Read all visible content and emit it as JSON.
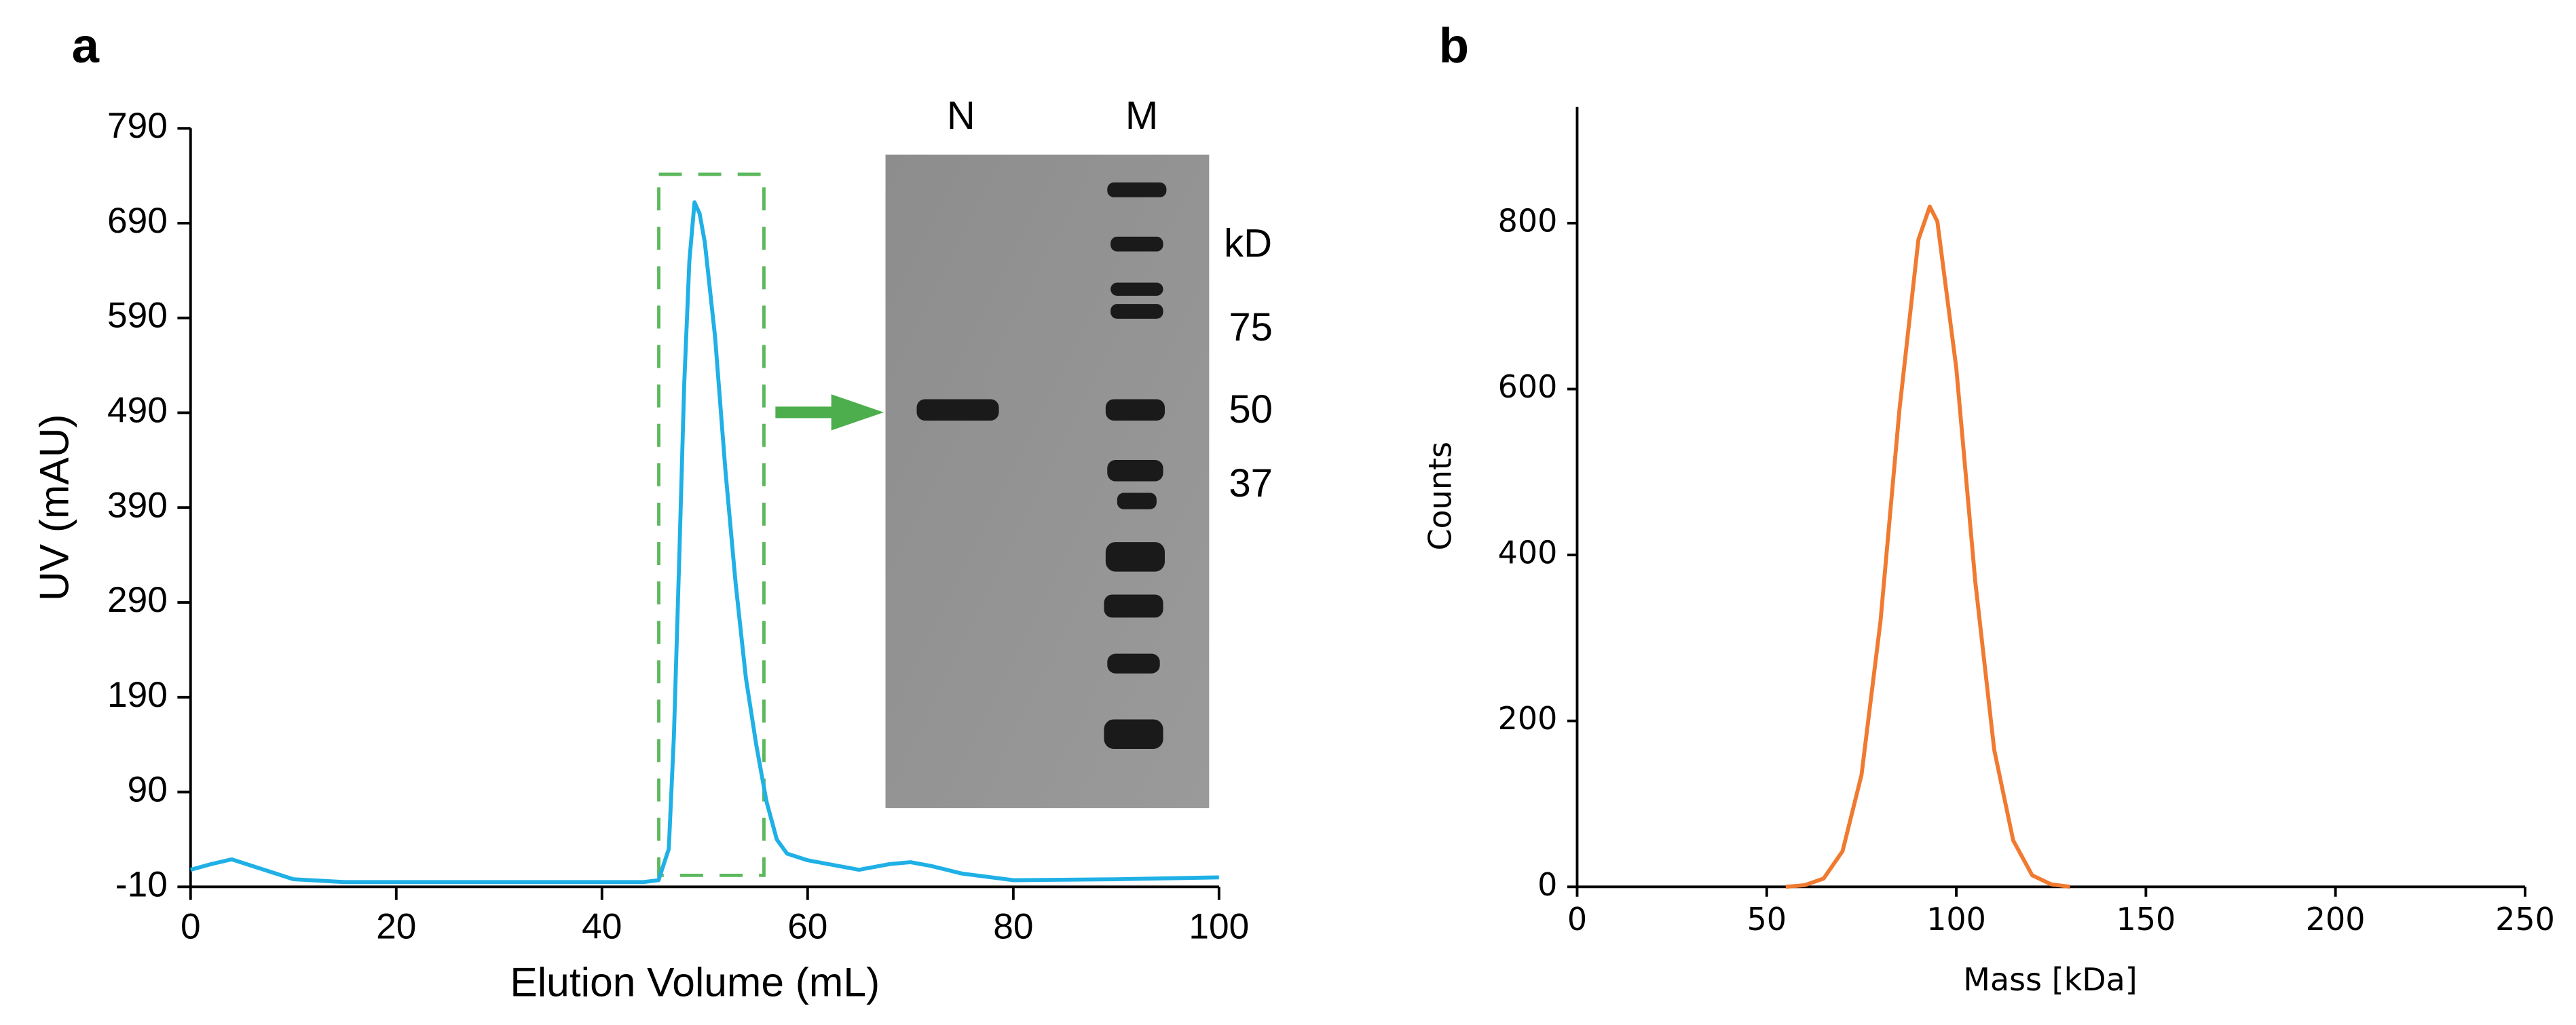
{
  "chart_data": [
    {
      "type": "line",
      "panel_label": "a",
      "x_label": "Elution Volume (mL)",
      "y_label": "UV (mAU)",
      "xlim": [
        0,
        100
      ],
      "xticks": [
        0,
        20,
        40,
        60,
        80,
        100
      ],
      "ylim": [
        -10,
        790
      ],
      "yticks": [
        -10,
        90,
        190,
        290,
        390,
        490,
        590,
        690,
        790
      ],
      "series": [
        {
          "name": "UV",
          "color": "#1fb0e6",
          "x": [
            0,
            2,
            4,
            6,
            10,
            15,
            20,
            30,
            40,
            44,
            45.5,
            46.5,
            47,
            47.5,
            48,
            48.5,
            49,
            49.5,
            50,
            51,
            52,
            53,
            54,
            55,
            56,
            57,
            58,
            60,
            65,
            68,
            70,
            72,
            75,
            80,
            90,
            100
          ],
          "values": [
            8,
            14,
            19,
            12,
            -2,
            -5,
            -5,
            -5,
            -5,
            -5,
            -3,
            30,
            150,
            330,
            520,
            650,
            712,
            700,
            670,
            570,
            430,
            310,
            210,
            140,
            80,
            40,
            25,
            18,
            8,
            14,
            16,
            12,
            4,
            -3,
            -2,
            0
          ]
        }
      ],
      "inset": {
        "lanes": [
          "N",
          "M"
        ],
        "unit": "kD",
        "markers": [
          "75",
          "50",
          "37"
        ]
      }
    },
    {
      "type": "line",
      "panel_label": "b",
      "x_label": "Mass [kDa]",
      "y_label": "Counts",
      "xlim": [
        0,
        250
      ],
      "xticks": [
        0,
        50,
        100,
        150,
        200,
        250
      ],
      "ylim": [
        0,
        940
      ],
      "yticks": [
        0,
        200,
        400,
        600,
        800
      ],
      "series": [
        {
          "name": "Counts",
          "color": "#f07a30",
          "x": [
            55,
            60,
            65,
            70,
            75,
            80,
            85,
            90,
            93,
            95,
            100,
            105,
            110,
            115,
            120,
            125,
            130
          ],
          "values": [
            0,
            2,
            10,
            43,
            135,
            320,
            575,
            780,
            820,
            802,
            625,
            368,
            165,
            56,
            14,
            3,
            0
          ]
        }
      ]
    }
  ]
}
